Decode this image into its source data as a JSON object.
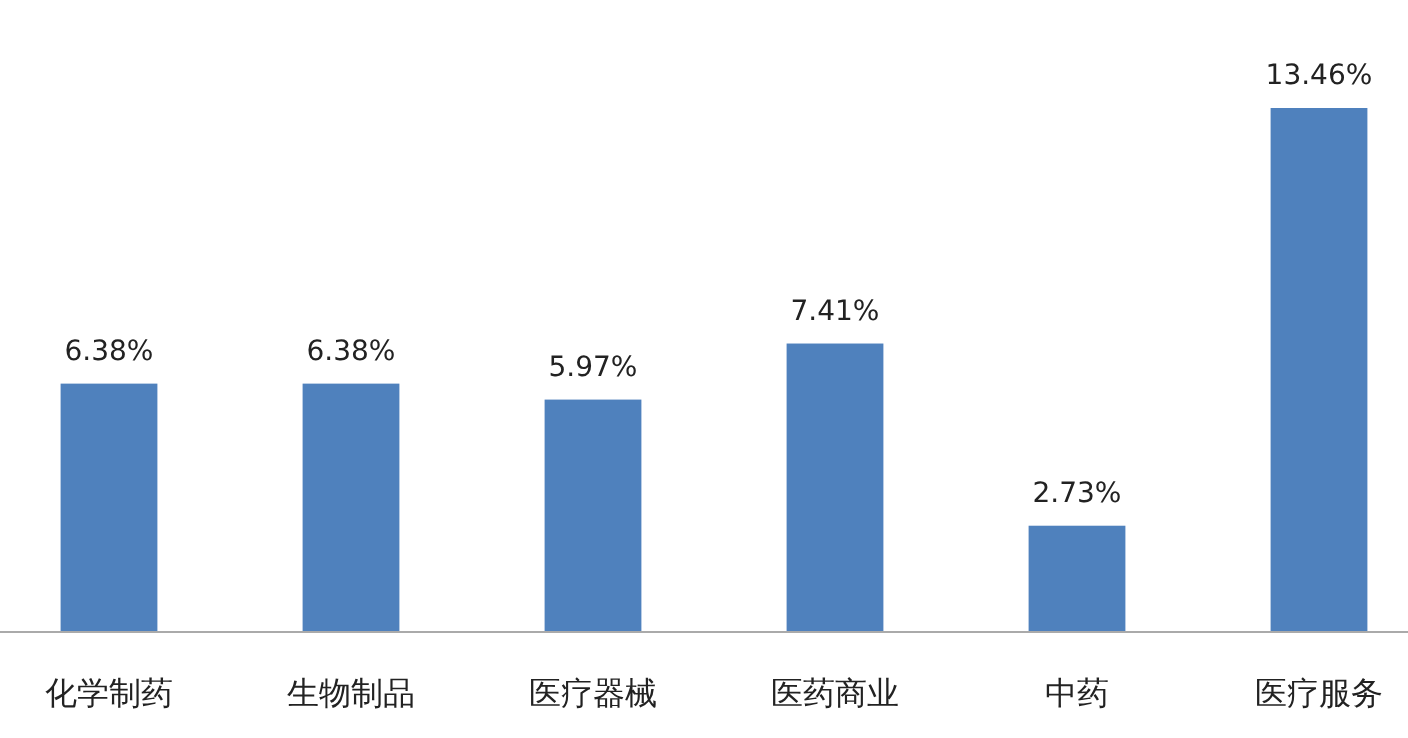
{
  "chart_data": {
    "type": "bar",
    "categories": [
      "化学制药",
      "生物制品",
      "医疗器械",
      "医药商业",
      "中药",
      "医疗服务"
    ],
    "values": [
      6.38,
      6.38,
      5.97,
      7.41,
      2.73,
      13.46
    ],
    "value_labels": [
      "6.38%",
      "6.38%",
      "5.97%",
      "7.41%",
      "2.73%",
      "13.46%"
    ],
    "color": "#4f81bd",
    "tick_labels": "x"
  }
}
